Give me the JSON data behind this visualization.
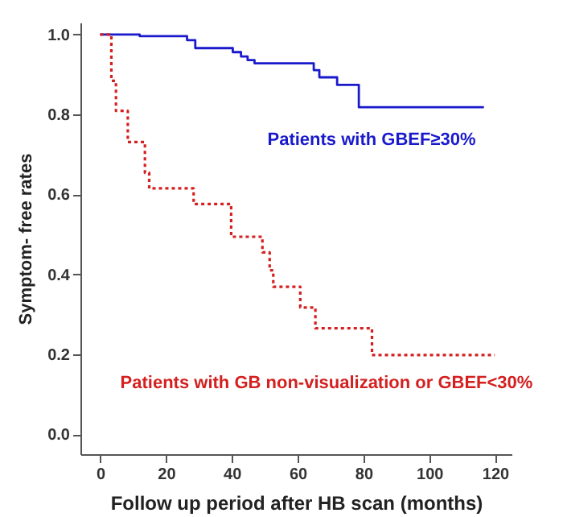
{
  "chart_data": {
    "type": "step",
    "xlabel": "Follow up period after HB scan (months)",
    "ylabel": "Symptom- free rates",
    "xlim": [
      -6,
      125
    ],
    "xticks": [
      0,
      20,
      40,
      60,
      80,
      100,
      120
    ],
    "ylim": [
      -0.05,
      1.03
    ],
    "yticks": [
      {
        "value": 0,
        "label": "0.0"
      },
      {
        "value": 0.2,
        "label": "0.2"
      },
      {
        "value": 0.4,
        "label": "0.4"
      },
      {
        "value": 0.6,
        "label": "0.6"
      },
      {
        "value": 0.8,
        "label": "0.8"
      },
      {
        "value": 1,
        "label": "1.0"
      }
    ],
    "grid": false,
    "series": [
      {
        "name": "Patients with GBEF≥30%",
        "color": "#1a1acc",
        "line_style": "solid",
        "x": [
          0,
          12,
          26.4,
          28.9,
          40.3,
          42.8,
          44.8,
          46.9,
          64.9,
          66.6,
          72,
          78.6,
          116.6
        ],
        "values": [
          1,
          0.996,
          0.986,
          0.966,
          0.956,
          0.945,
          0.936,
          0.928,
          0.911,
          0.893,
          0.874,
          0.818,
          0.818
        ]
      },
      {
        "name": "Patients with GB non-visualization or GBEF<30%",
        "color": "#d42020",
        "line_style": "dotted",
        "x": [
          0,
          3.4,
          4.8,
          8.4,
          13.6,
          14.9,
          28.4,
          39.8,
          49.3,
          51.5,
          52.6,
          60.8,
          65.4,
          82.6,
          119.9
        ],
        "values": [
          1,
          0.884,
          0.809,
          0.731,
          0.654,
          0.615,
          0.576,
          0.494,
          0.455,
          0.41,
          0.369,
          0.317,
          0.265,
          0.198,
          0.198
        ]
      }
    ]
  }
}
